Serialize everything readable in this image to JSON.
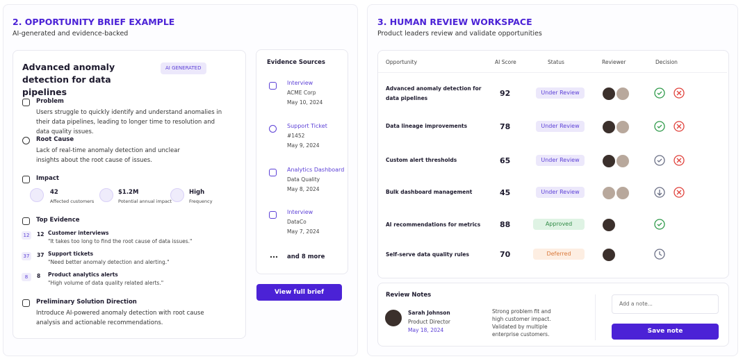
{
  "brief": {
    "title": "2. OPPORTUNITY BRIEF EXAMPLE",
    "subtitle": "AI-generated and evidence-backed",
    "card": {
      "heading": "Advanced anomaly detection for data pipelines",
      "badge": "AI GENERATED",
      "problem": {
        "label": "Problem",
        "text": "Users struggle to quickly identify and understand anomalies in their data pipelines, leading to longer time to resolution and data quality issues."
      },
      "root_cause": {
        "label": "Root Cause",
        "text": "Lack of real-time anomaly detection and unclear insights about the root cause of issues."
      },
      "impact": {
        "label": "Impact",
        "metrics": [
          {
            "value": "42",
            "label": "Affected customers"
          },
          {
            "value": "$1.2M",
            "label": "Potential annual impact"
          },
          {
            "value": "High",
            "label": "Frequency"
          }
        ]
      },
      "top_evidence": {
        "label": "Top Evidence",
        "items": [
          {
            "count": 12,
            "title": "Customer interviews",
            "quote": "\"It takes too long to find the root cause of data issues.\""
          },
          {
            "count": 37,
            "title": "Support tickets",
            "quote": "\"Need better anomaly detection and alerting.\""
          },
          {
            "count": 8,
            "title": "Product analytics alerts",
            "quote": "\"High volume of data quality related alerts.\""
          }
        ]
      },
      "solution": {
        "label": "Preliminary Solution Direction",
        "text": "Introduce AI-powered anomaly detection with root cause analysis and actionable recommendations."
      }
    },
    "evidence": {
      "title": "Evidence Sources",
      "items": [
        {
          "type": "Interview",
          "source": "ACME Corp",
          "date": "May 10, 2024"
        },
        {
          "type": "Support Ticket",
          "source": "#1452",
          "date": "May 9, 2024"
        },
        {
          "type": "Analytics Dashboard",
          "source": "Data Quality",
          "date": "May 8, 2024"
        },
        {
          "type": "Interview",
          "source": "DataCo",
          "date": "May 7, 2024"
        }
      ],
      "more": "and 8 more"
    },
    "button": "View full brief"
  },
  "review": {
    "title": "3. HUMAN REVIEW WORKSPACE",
    "subtitle": "Product leaders review and validate opportunities",
    "table": {
      "headers": [
        "Opportunity",
        "AI Score",
        "Status",
        "Reviewer",
        "Decision"
      ],
      "rows": [
        [
          "Advanced anomaly detection for data pipelines",
          92,
          "Under Review"
        ],
        [
          "Data lineage improvements",
          78,
          "Under Review"
        ],
        [
          "Custom alert thresholds",
          65,
          "Under Review"
        ],
        [
          "Bulk dashboard management",
          45,
          "Under Review"
        ],
        [
          "AI recommendations for metrics",
          88,
          "Approved"
        ],
        [
          "Self-serve data quality rules",
          70,
          "Deferred"
        ]
      ]
    },
    "notes": {
      "title": "Review Notes",
      "name": "Sarah Johnson",
      "role": "Product Director",
      "date": "May 18, 2024",
      "text": "Strong problem fit and high customer impact. Validated by multiple enterprise customers.",
      "placeholder": "Add a note...",
      "button": "Save note"
    }
  }
}
